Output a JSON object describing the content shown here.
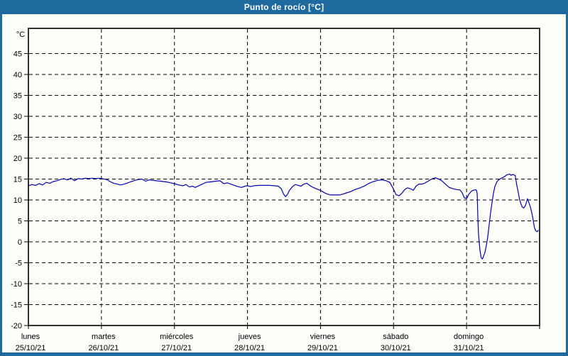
{
  "window": {
    "title": "Punto de rocío [°C]"
  },
  "colors": {
    "titlebar_bg": "#1e6a9e",
    "window_border": "#1e6a9e",
    "content_bg": "#fdfdfa",
    "axis_frame": "#000000",
    "gridline": "#000000",
    "tick_text": "#000000",
    "series_line": "#0000b0"
  },
  "chart_data": {
    "type": "line",
    "title": "Punto de rocío [°C]",
    "ylabel": "°C",
    "xlabel": "",
    "ylim": [
      -20,
      51
    ],
    "x_hours_range": [
      0,
      168
    ],
    "grid": "dashed",
    "legend": "none",
    "y_ticks": [
      45,
      40,
      35,
      30,
      25,
      20,
      15,
      10,
      5,
      0,
      -5,
      -10,
      -15,
      -20
    ],
    "x_categories": [
      {
        "day": "lunes",
        "date": "25/10/21"
      },
      {
        "day": "martes",
        "date": "26/10/21"
      },
      {
        "day": "miércoles",
        "date": "27/10/21"
      },
      {
        "day": "jueves",
        "date": "28/10/21"
      },
      {
        "day": "viernes",
        "date": "29/10/21"
      },
      {
        "day": "sábado",
        "date": "30/10/21"
      },
      {
        "day": "domingo",
        "date": "31/10/21"
      }
    ],
    "series": [
      {
        "name": "Punto de rocío",
        "color": "#0000b0",
        "points": [
          [
            0,
            13.4
          ],
          [
            1.2,
            13.7
          ],
          [
            2.3,
            13.5
          ],
          [
            3.5,
            13.9
          ],
          [
            4.7,
            13.6
          ],
          [
            5.8,
            14.2
          ],
          [
            7,
            14.0
          ],
          [
            8.2,
            14.4
          ],
          [
            9.3,
            14.6
          ],
          [
            10.5,
            14.9
          ],
          [
            11.7,
            15.1
          ],
          [
            12.8,
            14.8
          ],
          [
            14,
            15.2
          ],
          [
            15.2,
            14.6
          ],
          [
            16.3,
            15.1
          ],
          [
            17.5,
            15.0
          ],
          [
            18.7,
            15.2
          ],
          [
            20,
            15.1
          ],
          [
            21,
            15.2
          ],
          [
            22.2,
            15.1
          ],
          [
            23.3,
            15.2
          ],
          [
            24,
            15.1
          ],
          [
            25.7,
            14.9
          ],
          [
            26.8,
            14.4
          ],
          [
            28,
            14.0
          ],
          [
            29.2,
            13.8
          ],
          [
            30.3,
            13.6
          ],
          [
            31.5,
            13.8
          ],
          [
            32.7,
            14.1
          ],
          [
            33.8,
            14.4
          ],
          [
            35,
            14.7
          ],
          [
            36.2,
            14.9
          ],
          [
            37.3,
            15.0
          ],
          [
            38.5,
            14.5
          ],
          [
            39.7,
            14.8
          ],
          [
            40.8,
            14.7
          ],
          [
            42,
            14.6
          ],
          [
            43.2,
            14.5
          ],
          [
            44.3,
            14.4
          ],
          [
            45.5,
            14.3
          ],
          [
            46.7,
            14.1
          ],
          [
            48,
            13.9
          ],
          [
            49.4,
            13.6
          ],
          [
            50.8,
            13.4
          ],
          [
            51.8,
            13.7
          ],
          [
            52.9,
            13.1
          ],
          [
            53.9,
            13.3
          ],
          [
            54.8,
            13.0
          ],
          [
            56,
            13.4
          ],
          [
            57.2,
            13.8
          ],
          [
            58.3,
            14.2
          ],
          [
            59.5,
            14.3
          ],
          [
            60.7,
            14.4
          ],
          [
            61.8,
            14.5
          ],
          [
            63,
            14.6
          ],
          [
            64.2,
            13.9
          ],
          [
            65.3,
            14.1
          ],
          [
            66.5,
            13.8
          ],
          [
            67.7,
            13.5
          ],
          [
            68.8,
            13.2
          ],
          [
            70,
            13.0
          ],
          [
            71.2,
            13.3
          ],
          [
            72,
            13.4
          ],
          [
            73,
            13.2
          ],
          [
            74.2,
            13.4
          ],
          [
            75.8,
            13.5
          ],
          [
            77.5,
            13.5
          ],
          [
            79.3,
            13.5
          ],
          [
            80.7,
            13.4
          ],
          [
            82.1,
            13.3
          ],
          [
            83.1,
            12.7
          ],
          [
            83.8,
            11.5
          ],
          [
            84.5,
            10.8
          ],
          [
            85.2,
            11.4
          ],
          [
            85.8,
            12.3
          ],
          [
            86.8,
            13.2
          ],
          [
            87.7,
            13.7
          ],
          [
            88.7,
            13.5
          ],
          [
            89.6,
            13.3
          ],
          [
            90.5,
            13.8
          ],
          [
            91.5,
            14.0
          ],
          [
            92.4,
            13.5
          ],
          [
            93.3,
            13.1
          ],
          [
            94.5,
            12.7
          ],
          [
            96,
            12.3
          ],
          [
            97.1,
            11.8
          ],
          [
            98.2,
            11.4
          ],
          [
            99.4,
            11.2
          ],
          [
            100.8,
            11.2
          ],
          [
            102.2,
            11.2
          ],
          [
            103.4,
            11.4
          ],
          [
            104.5,
            11.7
          ],
          [
            105.9,
            12.0
          ],
          [
            107.3,
            12.5
          ],
          [
            109,
            12.9
          ],
          [
            110.6,
            13.4
          ],
          [
            112,
            14.0
          ],
          [
            113.4,
            14.4
          ],
          [
            114.8,
            14.7
          ],
          [
            116.2,
            14.8
          ],
          [
            117.6,
            14.6
          ],
          [
            118.8,
            14.2
          ],
          [
            120,
            12.6
          ],
          [
            120.8,
            11.3
          ],
          [
            121.8,
            11.0
          ],
          [
            122.7,
            11.6
          ],
          [
            123.7,
            12.5
          ],
          [
            124.6,
            12.9
          ],
          [
            125.5,
            12.7
          ],
          [
            126.5,
            12.3
          ],
          [
            127.4,
            13.3
          ],
          [
            128.3,
            13.8
          ],
          [
            129.3,
            13.8
          ],
          [
            130.2,
            14.0
          ],
          [
            131.4,
            14.5
          ],
          [
            132.5,
            15.0
          ],
          [
            133.7,
            15.3
          ],
          [
            134.9,
            15.0
          ],
          [
            136,
            14.5
          ],
          [
            137.2,
            13.7
          ],
          [
            138.3,
            13.0
          ],
          [
            139.5,
            12.7
          ],
          [
            140.7,
            12.5
          ],
          [
            141.8,
            12.4
          ],
          [
            142.5,
            11.8
          ],
          [
            143.3,
            10.5
          ],
          [
            144,
            10.3
          ],
          [
            144.7,
            11.3
          ],
          [
            145.6,
            12.1
          ],
          [
            146.5,
            12.4
          ],
          [
            147.2,
            12.4
          ],
          [
            147.5,
            11.5
          ],
          [
            147.7,
            6.0
          ],
          [
            147.9,
            1.9
          ],
          [
            148.4,
            -2.0
          ],
          [
            148.8,
            -3.8
          ],
          [
            149.2,
            -4.1
          ],
          [
            149.5,
            -3.6
          ],
          [
            150,
            -2.6
          ],
          [
            150.4,
            -1.2
          ],
          [
            150.9,
            0.8
          ],
          [
            151.4,
            4.0
          ],
          [
            151.9,
            7.0
          ],
          [
            152.4,
            9.5
          ],
          [
            152.8,
            11.5
          ],
          [
            153.3,
            13.2
          ],
          [
            154,
            14.4
          ],
          [
            154.7,
            14.9
          ],
          [
            155.4,
            15.2
          ],
          [
            156.3,
            15.5
          ],
          [
            157.2,
            16.0
          ],
          [
            158.2,
            16.2
          ],
          [
            158.6,
            15.9
          ],
          [
            159.1,
            16.1
          ],
          [
            159.6,
            16.0
          ],
          [
            160,
            15.8
          ],
          [
            160.5,
            13.5
          ],
          [
            161,
            11.8
          ],
          [
            161.4,
            10.2
          ],
          [
            161.9,
            9.0
          ],
          [
            162.3,
            8.3
          ],
          [
            162.8,
            8.1
          ],
          [
            163.3,
            8.6
          ],
          [
            163.7,
            9.5
          ],
          [
            164,
            10.3
          ],
          [
            164.4,
            9.5
          ],
          [
            164.9,
            8.5
          ],
          [
            165.4,
            7.0
          ],
          [
            165.8,
            5.6
          ],
          [
            166.3,
            3.4
          ],
          [
            166.7,
            2.7
          ],
          [
            167.2,
            2.4
          ],
          [
            167.6,
            2.8
          ]
        ]
      }
    ]
  }
}
